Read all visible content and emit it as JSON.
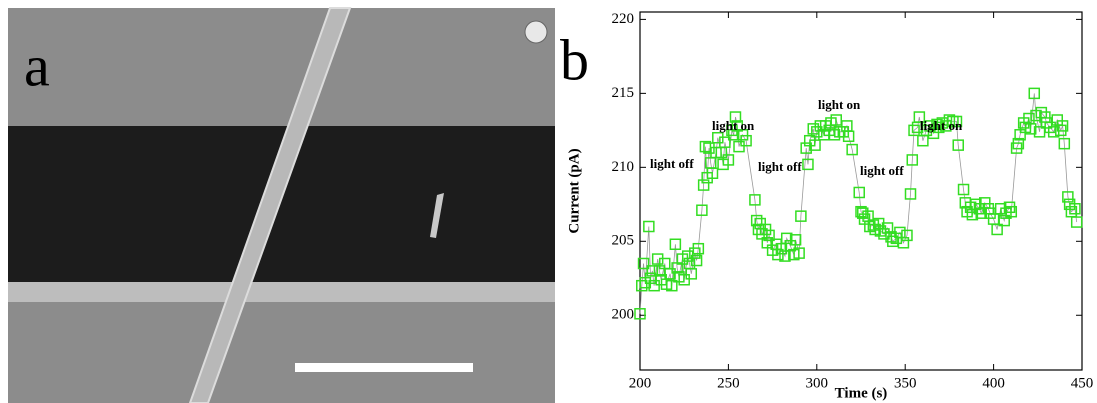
{
  "panel_labels": [
    "a",
    "b"
  ],
  "chart_data": {
    "type": "scatter",
    "xlabel": "Time (s)",
    "ylabel": "Current (pA)",
    "annotations": [
      "light off",
      "light on",
      "light off",
      "light on",
      "light off",
      "light on"
    ],
    "color": "#33dd22",
    "x": [
      200,
      201,
      202,
      203,
      205,
      206,
      207,
      208,
      210,
      211,
      212,
      214,
      215,
      217,
      218,
      220,
      221,
      222,
      224,
      225,
      227,
      228,
      229,
      231,
      232,
      233,
      235,
      236,
      237,
      238,
      239,
      240,
      241,
      243,
      244,
      246,
      247,
      248,
      250,
      252,
      253,
      254,
      255,
      256,
      258,
      260,
      265,
      266,
      267,
      268,
      269,
      271,
      272,
      273,
      275,
      277,
      278,
      280,
      282,
      283,
      285,
      287,
      288,
      290,
      291,
      294,
      295,
      296,
      298,
      299,
      300,
      302,
      304,
      305,
      307,
      308,
      310,
      311,
      313,
      315,
      317,
      318,
      320,
      324,
      325,
      326,
      327,
      329,
      330,
      332,
      333,
      335,
      336,
      338,
      340,
      342,
      343,
      345,
      347,
      349,
      351,
      353,
      354,
      355,
      357,
      358,
      360,
      362,
      364,
      366,
      368,
      369,
      371,
      373,
      375,
      377,
      379,
      380,
      383,
      384,
      385,
      387,
      388,
      390,
      392,
      393,
      395,
      397,
      398,
      400,
      402,
      404,
      406,
      407,
      409,
      410,
      413,
      414,
      415,
      417,
      418,
      420,
      421,
      423,
      424,
      426,
      427,
      429,
      430,
      432,
      434,
      436,
      438,
      439,
      440,
      442,
      443,
      444,
      446,
      447
    ],
    "values": [
      200.1,
      202,
      203.5,
      202.2,
      206,
      202.5,
      203,
      202,
      203.8,
      203,
      202.4,
      203.5,
      202.1,
      202.8,
      202,
      204.8,
      203.2,
      202.6,
      203.8,
      202.4,
      204,
      203.5,
      202.8,
      204.2,
      203.7,
      204.5,
      207.1,
      208.8,
      211.4,
      209.3,
      211.3,
      210.3,
      209.6,
      211,
      212,
      211,
      210.2,
      211.7,
      210.5,
      212.5,
      212.2,
      213.4,
      212.8,
      211.4,
      212.2,
      211.8,
      207.8,
      206.4,
      205.8,
      206.2,
      205.5,
      205.8,
      204.9,
      205.4,
      204.4,
      204.8,
      204.1,
      204.5,
      204,
      205.2,
      204.7,
      204.1,
      205.1,
      204.2,
      206.7,
      211.3,
      210.2,
      211.8,
      212.6,
      211.5,
      212.4,
      212.8,
      212.2,
      212.8,
      212.5,
      213,
      212.2,
      213.2,
      212.4,
      212.4,
      212.8,
      212.1,
      211.2,
      208.3,
      207,
      206.9,
      206.5,
      206.7,
      206,
      206.1,
      205.8,
      206.2,
      205.7,
      205.5,
      205.9,
      205.3,
      205,
      205.2,
      205.6,
      204.9,
      205.4,
      208.2,
      210.5,
      212.5,
      212.7,
      213.4,
      211.8,
      212.5,
      212.8,
      212.3,
      212.9,
      212.7,
      213,
      212.8,
      213.2,
      213.1,
      213.1,
      211.5,
      208.5,
      207.6,
      207,
      207.3,
      206.8,
      207.5,
      207.2,
      206.9,
      207.6,
      207.2,
      206.9,
      206.5,
      205.8,
      207.2,
      206.4,
      206.9,
      207.3,
      207,
      211.3,
      211.6,
      212.2,
      213,
      212.7,
      213.3,
      212.6,
      215,
      213.5,
      212.4,
      213.7,
      213.4,
      213,
      212.7,
      212.4,
      213.2,
      212.5,
      212.8,
      211.6,
      208,
      207.5,
      207,
      207.2,
      206.3
    ],
    "xlim": [
      200,
      450
    ],
    "xticks": [
      200,
      250,
      300,
      350,
      400,
      450
    ],
    "ylim": [
      196.3,
      220.5
    ],
    "yticks": [
      200,
      205,
      210,
      215,
      220
    ]
  }
}
